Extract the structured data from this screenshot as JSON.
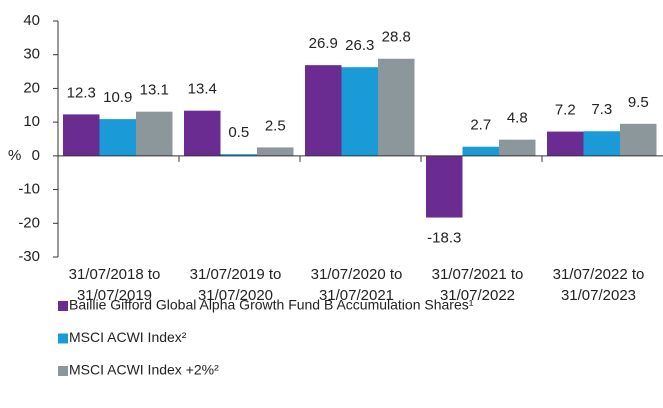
{
  "chart_data": {
    "type": "bar",
    "y_label": "%",
    "categories": [
      [
        "31/07/2018 to",
        "31/07/2019"
      ],
      [
        "31/07/2019 to",
        "31/07/2020"
      ],
      [
        "31/07/2020 to",
        "31/07/2021"
      ],
      [
        "31/07/2021 to",
        "31/07/2022"
      ],
      [
        "31/07/2022 to",
        "31/07/2023"
      ]
    ],
    "series": [
      {
        "name": "Baillie Gifford Global Alpha Growth Fund B Accumulation Shares¹",
        "color": "#6a2c91",
        "values": [
          12.3,
          13.4,
          26.9,
          -18.3,
          7.2
        ]
      },
      {
        "name": "MSCI ACWI Index²",
        "color": "#1a9bd7",
        "values": [
          10.9,
          0.5,
          26.3,
          2.7,
          7.3
        ]
      },
      {
        "name": "MSCI ACWI Index +2%²",
        "color": "#8c979c",
        "values": [
          13.1,
          2.5,
          28.8,
          4.8,
          9.5
        ]
      }
    ],
    "ylim": [
      -30,
      40
    ],
    "yticks": [
      -30,
      -20,
      -10,
      0,
      10,
      20,
      30,
      40
    ],
    "grid": false
  }
}
